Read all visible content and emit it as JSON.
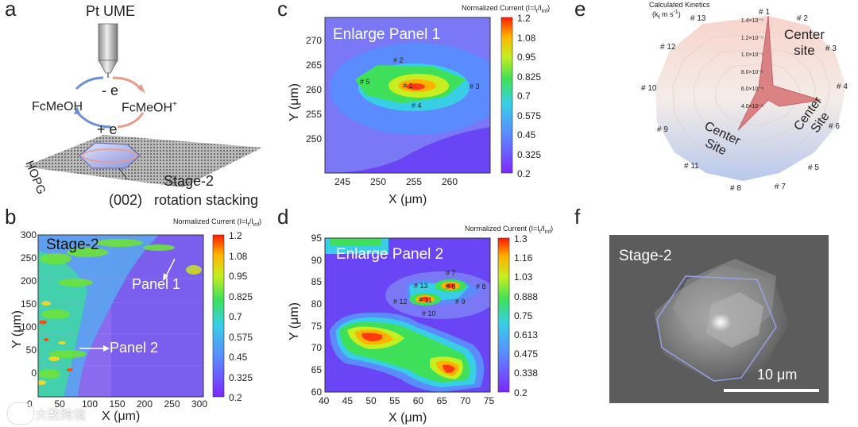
{
  "panels": {
    "a": {
      "letter": "a",
      "probe": "Pt UME",
      "minus_e": "- e",
      "plus_e": "+ e",
      "left_species": "FcMeOH",
      "right_species": "FcMeOH",
      "right_charge": "+",
      "substrate": "HOPG",
      "facet": "(002)",
      "stage_line1": "Stage-2",
      "stage_line2": "rotation stacking"
    },
    "b": {
      "letter": "b",
      "cbar_title": "Normalized Current (I=I",
      "cbar_sub1": "t",
      "cbar_sub2": "inf",
      "overlay": "Stage-2",
      "panel1": "Panel 1",
      "panel2": "Panel 2",
      "xlabel": "X (μm)",
      "ylabel": "Y (μm)",
      "xticks": [
        "0",
        "50",
        "100",
        "150",
        "200",
        "250",
        "300"
      ],
      "yticks": [
        "300",
        "250",
        "200",
        "150",
        "100",
        "50",
        "0"
      ],
      "cbar_ticks": [
        "1.2",
        "1.08",
        "0.95",
        "0.825",
        "0.7",
        "0.575",
        "0.45",
        "0.325",
        "0.2"
      ]
    },
    "c": {
      "letter": "c",
      "cbar_title": "Normalized Current (I=I",
      "cbar_sub1": "t",
      "cbar_sub2": "inf",
      "title": "Enlarge Panel 1",
      "xlabel": "X (μm)",
      "ylabel": "Y (μm)",
      "xticks": [
        "245",
        "250",
        "255",
        "260"
      ],
      "yticks": [
        "270",
        "265",
        "260",
        "255",
        "250"
      ],
      "cbar_ticks": [
        "1.2",
        "1.08",
        "0.95",
        "0.825",
        "0.7",
        "0.575",
        "0.45",
        "0.325",
        "0.2"
      ],
      "sites": [
        "# 2",
        "# 5",
        "# 1",
        "# 3",
        "# 4"
      ]
    },
    "d": {
      "letter": "d",
      "cbar_title": "Normalized Current (I=I",
      "cbar_sub1": "t",
      "cbar_sub2": "inf",
      "title": "Enlarge Panel 2",
      "xlabel": "X (μm)",
      "ylabel": "Y (μm)",
      "xticks": [
        "40",
        "45",
        "50",
        "55",
        "60",
        "65",
        "70",
        "75"
      ],
      "yticks": [
        "95",
        "90",
        "85",
        "80",
        "75",
        "70",
        "65",
        "60"
      ],
      "cbar_ticks": [
        "1.3",
        "1.16",
        "1.03",
        "0.888",
        "0.75",
        "0.613",
        "0.475",
        "0.338",
        "0.2"
      ],
      "sites": [
        "# 7",
        "# 13",
        "# 6",
        "# 8",
        "# 12",
        "# 11",
        "# 9",
        "# 10"
      ]
    },
    "e": {
      "letter": "e",
      "title_line1": "Calculated Kinetics",
      "title_line2": "(k",
      "title_sub": "f",
      "title_unit": " m s",
      "title_sup": "-1",
      "title_close": ")",
      "axis_labels": [
        "# 1",
        "# 2",
        "# 3",
        "# 4",
        "# 6",
        "# 5",
        "# 7",
        "# 8",
        "# 11",
        "# 9",
        "# 10",
        "# 12",
        "# 13"
      ],
      "radial_ticks": [
        "1.4×10⁻⁵",
        "1.2×10⁻⁵",
        "1.0×10⁻⁵",
        "8.0×10⁻⁶",
        "6.0×10⁻⁶",
        "4.0×10⁻⁶"
      ],
      "center_top_line1": "Center",
      "center_top_line2": "site",
      "center_right_line1": "Center",
      "center_right_line2": "Site",
      "center_left_line1": "Center",
      "center_left_line2": "Site"
    },
    "f": {
      "letter": "f",
      "overlay": "Stage-2",
      "scalebar": "10 μm"
    }
  },
  "watermark": "大数跨境"
}
